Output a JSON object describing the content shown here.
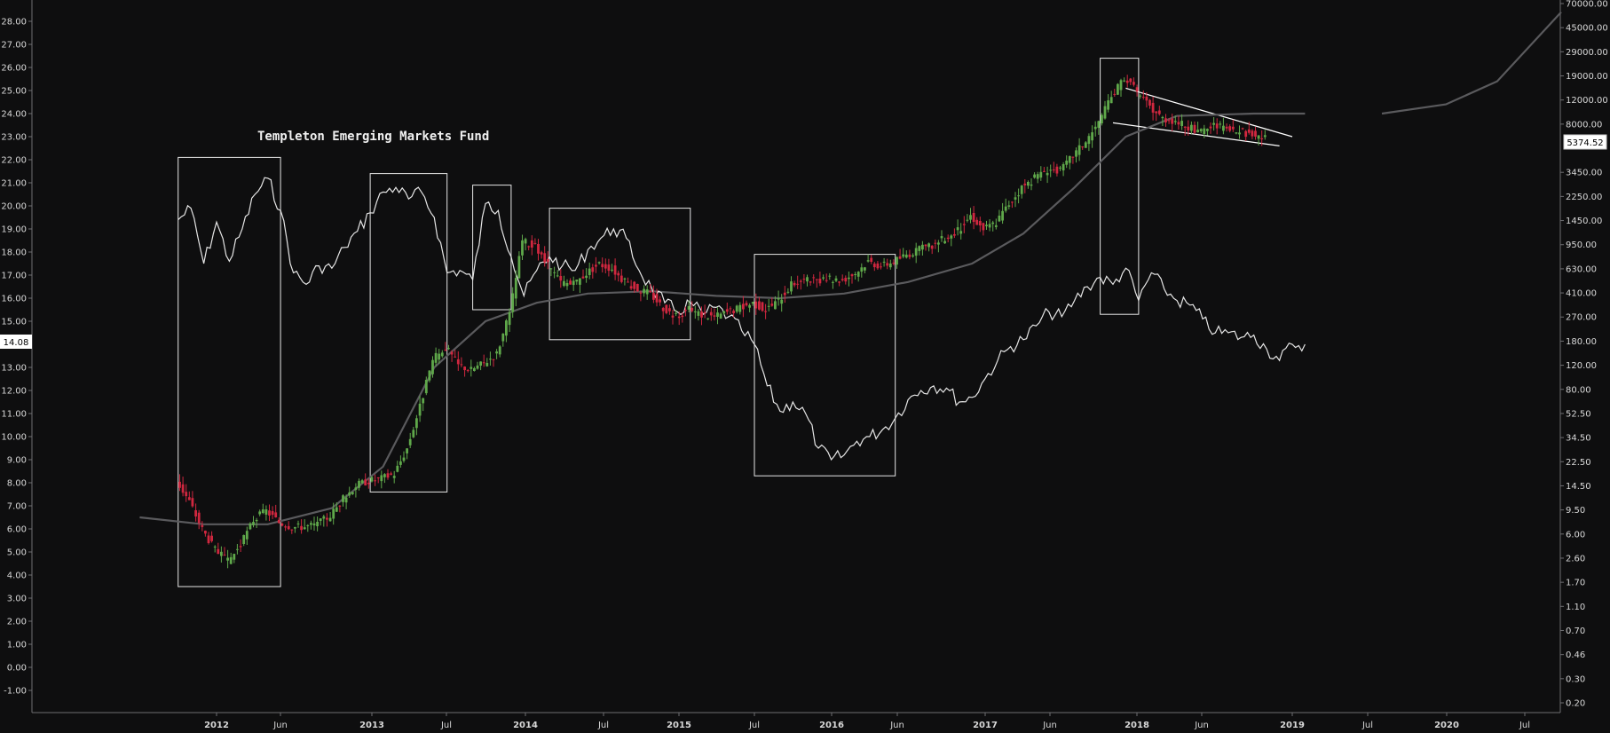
{
  "chart_data": {
    "type": "candlestick_overlay",
    "title": "Templeton Emerging Markets Fund",
    "left_axis": {
      "ticks": [
        "28.00",
        "27.00",
        "26.00",
        "25.00",
        "24.00",
        "23.00",
        "22.00",
        "21.00",
        "20.00",
        "19.00",
        "18.00",
        "17.00",
        "16.00",
        "15.00",
        "14.00",
        "13.00",
        "12.00",
        "11.00",
        "10.00",
        "9.00",
        "8.00",
        "7.00",
        "6.00",
        "5.00",
        "4.00",
        "3.00",
        "2.00",
        "1.00",
        "0.00",
        "-1.00"
      ],
      "current_value": "14.08"
    },
    "right_axis": {
      "scale": "log",
      "ticks": [
        "70000.00",
        "45000.00",
        "29000.00",
        "19000.00",
        "12000.00",
        "8000.00",
        "5374.52",
        "3450.00",
        "2250.00",
        "1450.00",
        "950.00",
        "630.00",
        "410.00",
        "270.00",
        "180.00",
        "120.00",
        "80.00",
        "52.50",
        "34.50",
        "22.50",
        "14.50",
        "9.50",
        "6.00",
        "2.60",
        "1.70",
        "1.10",
        "0.70",
        "0.46",
        "0.30",
        "0.20"
      ],
      "current_value": "5374.52"
    },
    "x_axis": {
      "ticks": [
        "2012",
        "Jun",
        "2013",
        "Jul",
        "2014",
        "Jul",
        "2015",
        "Jul",
        "2016",
        "Jun",
        "2017",
        "Jun",
        "2018",
        "Jun",
        "2019",
        "Jul",
        "2020",
        "Jul"
      ],
      "bold_ticks": [
        "2012",
        "2013",
        "2014",
        "2015",
        "2016",
        "2017",
        "2018",
        "2019",
        "2020"
      ]
    },
    "series": [
      {
        "name": "",
        "type": "candles"
      },
      {
        "name": "",
        "type": "line"
      },
      {
        "name": "",
        "type": "moving-average"
      }
    ],
    "overlay_points": [
      [
        "2011-10",
        19.4
      ],
      [
        "2011-11",
        19.9
      ],
      [
        "2011-12",
        17.5
      ],
      [
        "2012-01",
        19.3
      ],
      [
        "2012-02",
        17.6
      ],
      [
        "2012-03",
        19.0
      ],
      [
        "2012-04",
        20.5
      ],
      [
        "2012-05",
        21.2
      ],
      [
        "2012-06",
        19.8
      ],
      [
        "2012-07",
        17.1
      ],
      [
        "2012-08",
        16.6
      ],
      [
        "2012-09",
        17.4
      ],
      [
        "2012-10",
        17.3
      ],
      [
        "2012-11",
        18.2
      ],
      [
        "2012-12",
        18.9
      ],
      [
        "2013-01",
        19.7
      ],
      [
        "2013-02",
        20.6
      ],
      [
        "2013-03",
        20.8
      ],
      [
        "2013-04",
        20.3
      ],
      [
        "2013-05",
        20.6
      ],
      [
        "2013-06",
        19.5
      ],
      [
        "2013-07",
        17.1
      ],
      [
        "2013-08",
        17.2
      ],
      [
        "2013-09",
        16.8
      ],
      [
        "2013-10",
        20.1
      ],
      [
        "2013-11",
        19.8
      ],
      [
        "2013-12",
        17.8
      ],
      [
        "2014-01",
        16.1
      ],
      [
        "2014-02",
        17.2
      ],
      [
        "2014-03",
        17.8
      ],
      [
        "2014-04",
        17.4
      ],
      [
        "2014-05",
        17.2
      ],
      [
        "2014-06",
        18.1
      ],
      [
        "2014-07",
        18.6
      ],
      [
        "2014-08",
        19.0
      ],
      [
        "2014-09",
        18.6
      ],
      [
        "2014-10",
        17.2
      ],
      [
        "2014-11",
        16.4
      ],
      [
        "2014-12",
        15.8
      ],
      [
        "2015-01",
        15.4
      ],
      [
        "2015-02",
        15.8
      ],
      [
        "2015-03",
        15.3
      ],
      [
        "2015-04",
        15.6
      ],
      [
        "2015-05",
        15.2
      ],
      [
        "2015-06",
        14.6
      ],
      [
        "2015-07",
        14.0
      ],
      [
        "2015-08",
        12.2
      ],
      [
        "2015-09",
        11.1
      ],
      [
        "2015-10",
        11.5
      ],
      [
        "2015-11",
        11.0
      ],
      [
        "2015-12",
        9.5
      ],
      [
        "2016-01",
        9.0
      ],
      [
        "2016-02",
        9.2
      ],
      [
        "2016-03",
        9.8
      ],
      [
        "2016-04",
        10.0
      ],
      [
        "2016-05",
        10.3
      ],
      [
        "2016-06",
        10.8
      ],
      [
        "2016-07",
        11.6
      ],
      [
        "2016-08",
        12.0
      ],
      [
        "2016-09",
        12.2
      ],
      [
        "2016-10",
        12.1
      ],
      [
        "2016-11",
        11.5
      ],
      [
        "2016-12",
        11.7
      ],
      [
        "2017-01",
        12.5
      ],
      [
        "2017-02",
        13.3
      ],
      [
        "2017-03",
        13.9
      ],
      [
        "2017-04",
        14.2
      ],
      [
        "2017-05",
        14.8
      ],
      [
        "2017-06",
        15.4
      ],
      [
        "2017-07",
        15.2
      ],
      [
        "2017-08",
        15.9
      ],
      [
        "2017-09",
        16.5
      ],
      [
        "2017-10",
        16.9
      ],
      [
        "2017-11",
        16.6
      ],
      [
        "2017-12",
        17.3
      ],
      [
        "2018-01",
        15.9
      ],
      [
        "2018-02",
        17.1
      ],
      [
        "2018-03",
        16.4
      ],
      [
        "2018-04",
        15.9
      ],
      [
        "2018-05",
        15.7
      ],
      [
        "2018-06",
        15.1
      ],
      [
        "2018-07",
        14.5
      ],
      [
        "2018-08",
        14.5
      ],
      [
        "2018-09",
        14.3
      ],
      [
        "2018-10",
        14.4
      ],
      [
        "2018-11",
        13.8
      ],
      [
        "2018-12",
        13.3
      ],
      [
        "2019-01",
        14.0
      ],
      [
        "2019-02",
        14.0
      ]
    ],
    "candle_points": [
      [
        "2011-10",
        8.1
      ],
      [
        "2011-11",
        7.2
      ],
      [
        "2011-12",
        6.0
      ],
      [
        "2012-01",
        5.1
      ],
      [
        "2012-02",
        4.6
      ],
      [
        "2012-03",
        5.3
      ],
      [
        "2012-04",
        6.4
      ],
      [
        "2012-05",
        6.8
      ],
      [
        "2012-06",
        6.3
      ],
      [
        "2012-07",
        6.1
      ],
      [
        "2012-08",
        6.1
      ],
      [
        "2012-09",
        6.2
      ],
      [
        "2012-10",
        6.6
      ],
      [
        "2012-11",
        7.3
      ],
      [
        "2012-12",
        7.9
      ],
      [
        "2013-01",
        8.1
      ],
      [
        "2013-02",
        8.2
      ],
      [
        "2013-03",
        8.4
      ],
      [
        "2013-04",
        9.5
      ],
      [
        "2013-05",
        11.3
      ],
      [
        "2013-06",
        13.3
      ],
      [
        "2013-07",
        13.9
      ],
      [
        "2013-08",
        13.1
      ],
      [
        "2013-09",
        12.9
      ],
      [
        "2013-10",
        13.2
      ],
      [
        "2013-11",
        13.6
      ],
      [
        "2013-12",
        15.3
      ],
      [
        "2014-01",
        18.5
      ],
      [
        "2014-02",
        18.2
      ],
      [
        "2014-03",
        17.4
      ],
      [
        "2014-04",
        16.7
      ],
      [
        "2014-05",
        16.6
      ],
      [
        "2014-06",
        17.1
      ],
      [
        "2014-07",
        17.5
      ],
      [
        "2014-08",
        17.3
      ],
      [
        "2014-09",
        16.7
      ],
      [
        "2014-10",
        16.4
      ],
      [
        "2014-11",
        16.2
      ],
      [
        "2014-12",
        15.6
      ],
      [
        "2015-01",
        15.2
      ],
      [
        "2015-02",
        15.5
      ],
      [
        "2015-03",
        15.3
      ],
      [
        "2015-04",
        15.2
      ],
      [
        "2015-05",
        15.4
      ],
      [
        "2015-06",
        15.6
      ],
      [
        "2015-07",
        15.8
      ],
      [
        "2015-08",
        15.5
      ],
      [
        "2015-09",
        15.9
      ],
      [
        "2015-10",
        16.6
      ],
      [
        "2015-11",
        16.8
      ],
      [
        "2015-12",
        16.7
      ],
      [
        "2016-01",
        16.8
      ],
      [
        "2016-02",
        16.8
      ],
      [
        "2016-03",
        17.1
      ],
      [
        "2016-04",
        17.6
      ],
      [
        "2016-05",
        17.4
      ],
      [
        "2016-06",
        17.6
      ],
      [
        "2016-07",
        17.9
      ],
      [
        "2016-08",
        18.1
      ],
      [
        "2016-09",
        18.3
      ],
      [
        "2016-10",
        18.6
      ],
      [
        "2016-11",
        18.9
      ],
      [
        "2016-12",
        19.6
      ],
      [
        "2017-01",
        19.0
      ],
      [
        "2017-02",
        19.3
      ],
      [
        "2017-03",
        20.1
      ],
      [
        "2017-04",
        20.8
      ],
      [
        "2017-05",
        21.2
      ],
      [
        "2017-06",
        21.6
      ],
      [
        "2017-07",
        21.5
      ],
      [
        "2017-08",
        22.2
      ],
      [
        "2017-09",
        22.8
      ],
      [
        "2017-10",
        23.6
      ],
      [
        "2017-11",
        24.7
      ],
      [
        "2017-12",
        25.6
      ],
      [
        "2018-01",
        24.9
      ],
      [
        "2018-02",
        24.3
      ],
      [
        "2018-03",
        23.8
      ],
      [
        "2018-04",
        23.7
      ],
      [
        "2018-05",
        23.4
      ],
      [
        "2018-06",
        23.2
      ],
      [
        "2018-07",
        23.5
      ],
      [
        "2018-08",
        23.3
      ],
      [
        "2018-09",
        23.2
      ],
      [
        "2018-10",
        23.1
      ],
      [
        "2018-11",
        22.9
      ]
    ],
    "ma_points": [
      [
        "2011-07",
        6.5
      ],
      [
        "2011-12",
        6.2
      ],
      [
        "2012-05",
        6.2
      ],
      [
        "2012-10",
        6.9
      ],
      [
        "2013-02",
        8.7
      ],
      [
        "2013-06",
        13.0
      ],
      [
        "2013-10",
        15.0
      ],
      [
        "2014-02",
        15.8
      ],
      [
        "2014-06",
        16.2
      ],
      [
        "2014-11",
        16.3
      ],
      [
        "2015-04",
        16.1
      ],
      [
        "2015-09",
        16.0
      ],
      [
        "2016-02",
        16.2
      ],
      [
        "2016-07",
        16.7
      ],
      [
        "2016-12",
        17.5
      ],
      [
        "2017-04",
        18.8
      ],
      [
        "2017-08",
        20.8
      ],
      [
        "2017-12",
        23.0
      ],
      [
        "2018-04",
        23.9
      ],
      [
        "2018-10",
        24.0
      ],
      [
        "2019-02",
        24.0
      ],
      [
        "2019-08",
        24.0
      ],
      [
        "2020-01",
        24.4
      ],
      [
        "2020-05",
        25.4
      ],
      [
        "2020-10",
        28.4
      ]
    ],
    "annotations": [
      {
        "type": "rect",
        "x0": "2011-10",
        "x1": "2012-06",
        "y0": 3.5,
        "y1": 22.1
      },
      {
        "type": "rect",
        "x0": "2013-01",
        "x1": "2013-07",
        "y0": 7.6,
        "y1": 21.4
      },
      {
        "type": "rect",
        "x0": "2013-09",
        "x1": "2013-12",
        "y0": 15.5,
        "y1": 20.9
      },
      {
        "type": "rect",
        "x0": "2014-03",
        "x1": "2015-02",
        "y0": 14.2,
        "y1": 19.9
      },
      {
        "type": "rect",
        "x0": "2015-07",
        "x1": "2016-06",
        "y0": 8.3,
        "y1": 17.9
      },
      {
        "type": "rect",
        "x0": "2017-10",
        "x1": "2018-01",
        "y0": 15.3,
        "y1": 26.4
      },
      {
        "type": "trendline",
        "from": [
          "2017-12",
          25.1
        ],
        "to": [
          "2019-01",
          23.0
        ]
      },
      {
        "type": "trendline",
        "from": [
          "2017-11",
          23.6
        ],
        "to": [
          "2018-12",
          22.6
        ]
      }
    ]
  }
}
